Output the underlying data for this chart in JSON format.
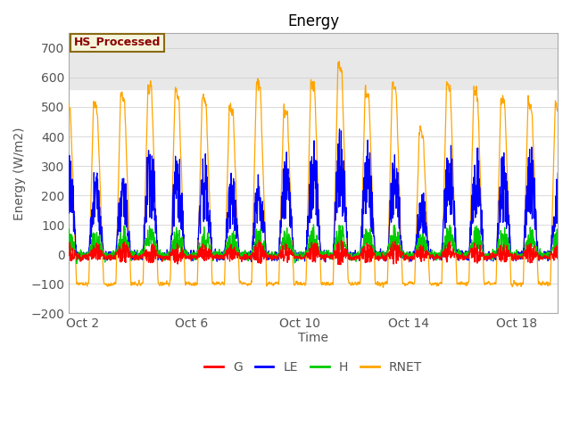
{
  "title": "Energy",
  "xlabel": "Time",
  "ylabel": "Energy (W/m2)",
  "ylim": [
    -200,
    750
  ],
  "yticks": [
    -200,
    -100,
    0,
    100,
    200,
    300,
    400,
    500,
    600,
    700
  ],
  "xtick_labels": [
    "Oct 2",
    "Oct 6",
    "Oct 10",
    "Oct 14",
    "Oct 18"
  ],
  "xtick_positions": [
    1,
    5,
    9,
    13,
    17
  ],
  "colors": {
    "G": "#ff0000",
    "LE": "#0000ff",
    "H": "#00cc00",
    "RNET": "#ffa500"
  },
  "legend_entries": [
    "G",
    "LE",
    "H",
    "RNET"
  ],
  "annotation_text": "HS_Processed",
  "annotation_color": "#8b0000",
  "annotation_bg": "#f5f5dc",
  "annotation_border": "#8b6914",
  "bg_band_color": "#e8e8e8",
  "bg_band_ymin": 560,
  "bg_band_ymax": 750,
  "n_days": 19,
  "samples_per_day": 96,
  "figsize": [
    6.4,
    4.8
  ],
  "dpi": 100
}
